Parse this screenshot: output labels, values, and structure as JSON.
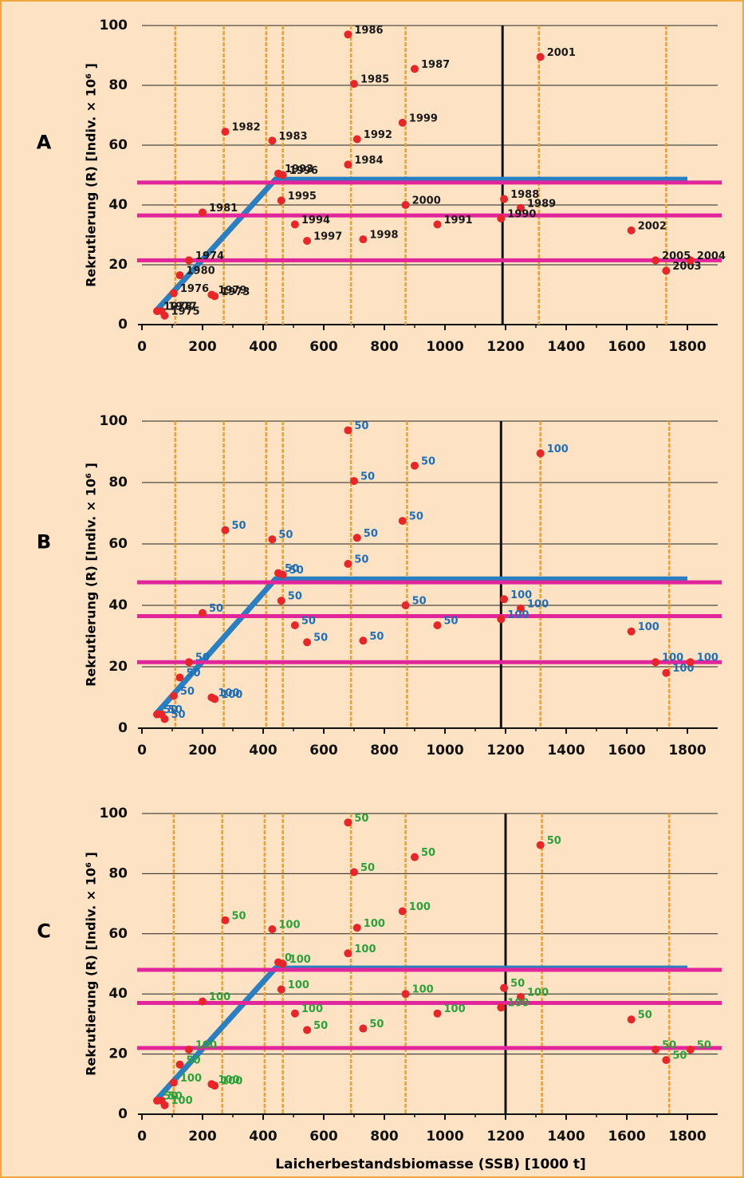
{
  "chart_data": [
    {
      "type": "scatter",
      "panel_label": "A",
      "ylabel": "Rekrutierung (R)  [Indiv. × 10⁶ ]",
      "x": [
        240,
        155,
        75,
        105,
        65,
        50,
        230,
        125,
        200,
        275,
        430,
        680,
        700,
        680,
        900,
        1195,
        1250,
        1185,
        975,
        710,
        450,
        505,
        460,
        465,
        545,
        730,
        860,
        870,
        1315,
        1615,
        1730,
        1810,
        1695
      ],
      "y": [
        9.5,
        21.5,
        3,
        10.5,
        4.5,
        4.5,
        10,
        16.5,
        37.5,
        64.5,
        61.5,
        53.5,
        80.5,
        97,
        85.5,
        42,
        39,
        35.5,
        33.5,
        62,
        50.5,
        33.5,
        41.5,
        50,
        28,
        28.5,
        67.5,
        40,
        89.5,
        31.5,
        18,
        21.5,
        21.5
      ],
      "point_labels": [
        "1973",
        "1974",
        "1975",
        "1976",
        "1977",
        "1978",
        "1979",
        "1980",
        "1981",
        "1982",
        "1983",
        "1984",
        "1985",
        "1986",
        "1987",
        "1988",
        "1989",
        "1990",
        "1991",
        "1992",
        "1993",
        "1994",
        "1995",
        "1996",
        "1997",
        "1998",
        "1999",
        "2000",
        "2001",
        "2002",
        "2003",
        "2004",
        "2005"
      ],
      "label_color": "#1a1a1a",
      "point_color": "#e8262a",
      "xlim": [
        0,
        1900
      ],
      "ylim": [
        0,
        100
      ],
      "xticks": [
        0,
        200,
        400,
        600,
        800,
        1000,
        1200,
        1400,
        1600,
        1800
      ],
      "yticks": [
        0,
        20,
        40,
        60,
        80,
        100
      ],
      "vertical_lines": [
        110,
        270,
        410,
        465,
        690,
        870,
        1310,
        1730
      ],
      "vertical_color": "#f0a030",
      "reference_x": 1190,
      "reference_color": "#111111",
      "horizontal_lines": [
        47.5,
        36.5,
        21.5
      ],
      "horizontal_color": "#e0269a",
      "model_x": [
        50,
        440,
        1800
      ],
      "model_y": [
        5,
        48.5,
        48.5
      ],
      "model_color": "#2a7fc1"
    },
    {
      "type": "scatter",
      "panel_label": "B",
      "ylabel": "Rekrutierung (R)  [Indiv. × 10⁶ ]",
      "x": [
        240,
        155,
        75,
        105,
        65,
        50,
        230,
        125,
        200,
        275,
        430,
        680,
        700,
        680,
        900,
        1195,
        1250,
        1185,
        975,
        710,
        450,
        505,
        460,
        465,
        545,
        730,
        860,
        870,
        1315,
        1615,
        1730,
        1810,
        1695
      ],
      "y": [
        9.5,
        21.5,
        3,
        10.5,
        4.5,
        4.5,
        10,
        16.5,
        37.5,
        64.5,
        61.5,
        53.5,
        80.5,
        97,
        85.5,
        42,
        39,
        35.5,
        33.5,
        62,
        50.5,
        33.5,
        41.5,
        50,
        28,
        28.5,
        67.5,
        40,
        89.5,
        31.5,
        18,
        21.5,
        21.5
      ],
      "point_labels": [
        "100",
        "50",
        "50",
        "50",
        "50",
        "50",
        "100",
        "50",
        "50",
        "50",
        "50",
        "50",
        "50",
        "50",
        "50",
        "100",
        "100",
        "100",
        "50",
        "50",
        "50",
        "50",
        "50",
        "50",
        "50",
        "50",
        "50",
        "50",
        "100",
        "100",
        "100",
        "100",
        "100"
      ],
      "label_color": "#1f6fb8",
      "point_color": "#e8262a",
      "xlim": [
        0,
        1900
      ],
      "ylim": [
        0,
        100
      ],
      "xticks": [
        0,
        200,
        400,
        600,
        800,
        1000,
        1200,
        1400,
        1600,
        1800
      ],
      "yticks": [
        0,
        20,
        40,
        60,
        80,
        100
      ],
      "vertical_lines": [
        110,
        270,
        410,
        465,
        690,
        875,
        1315,
        1740
      ],
      "vertical_color": "#f0a030",
      "reference_x": 1185,
      "reference_color": "#111111",
      "horizontal_lines": [
        47.5,
        36.5,
        21.5
      ],
      "horizontal_color": "#e0269a",
      "model_x": [
        50,
        440,
        1800
      ],
      "model_y": [
        5,
        48.5,
        48.5
      ],
      "model_color": "#2a7fc1"
    },
    {
      "type": "scatter",
      "panel_label": "C",
      "ylabel": "Rekrutierung (R)  [Indiv. × 10⁶ ]",
      "x": [
        240,
        155,
        75,
        105,
        65,
        50,
        230,
        125,
        200,
        275,
        430,
        680,
        700,
        680,
        900,
        1195,
        1250,
        1185,
        975,
        710,
        450,
        505,
        460,
        465,
        545,
        730,
        860,
        870,
        1315,
        1615,
        1730,
        1810,
        1695
      ],
      "y": [
        9.5,
        21.5,
        3,
        10.5,
        4.5,
        4.5,
        10,
        16.5,
        37.5,
        64.5,
        61.5,
        53.5,
        80.5,
        97,
        85.5,
        42,
        39,
        35.5,
        33.5,
        62,
        50.5,
        33.5,
        41.5,
        50,
        28,
        28.5,
        67.5,
        40,
        89.5,
        31.5,
        18,
        21.5,
        21.5
      ],
      "point_labels": [
        "100",
        "100",
        "100",
        "100",
        "50",
        "50",
        "100",
        "50",
        "100",
        "50",
        "100",
        "100",
        "50",
        "50",
        "50",
        "50",
        "100",
        "100",
        "100",
        "100",
        "0",
        "100",
        "100",
        "100",
        "50",
        "50",
        "100",
        "100",
        "50",
        "50",
        "50",
        "50",
        "50"
      ],
      "label_color": "#2aa13a",
      "point_color": "#e8262a",
      "xlim": [
        0,
        1900
      ],
      "ylim": [
        0,
        100
      ],
      "xticks": [
        0,
        200,
        400,
        600,
        800,
        1000,
        1200,
        1400,
        1600,
        1800
      ],
      "yticks": [
        0,
        20,
        40,
        60,
        80,
        100
      ],
      "vertical_lines": [
        105,
        265,
        405,
        465,
        690,
        870,
        1320,
        1740
      ],
      "vertical_color": "#f0a030",
      "reference_x": 1200,
      "reference_color": "#111111",
      "horizontal_lines": [
        48,
        37,
        22
      ],
      "horizontal_color": "#e0269a",
      "model_x": [
        50,
        440,
        1800
      ],
      "model_y": [
        5,
        48.5,
        48.5
      ],
      "model_color": "#2a7fc1"
    }
  ],
  "xlabel": "Laicherbestandsbiomasse (SSB)  [1000 t]"
}
